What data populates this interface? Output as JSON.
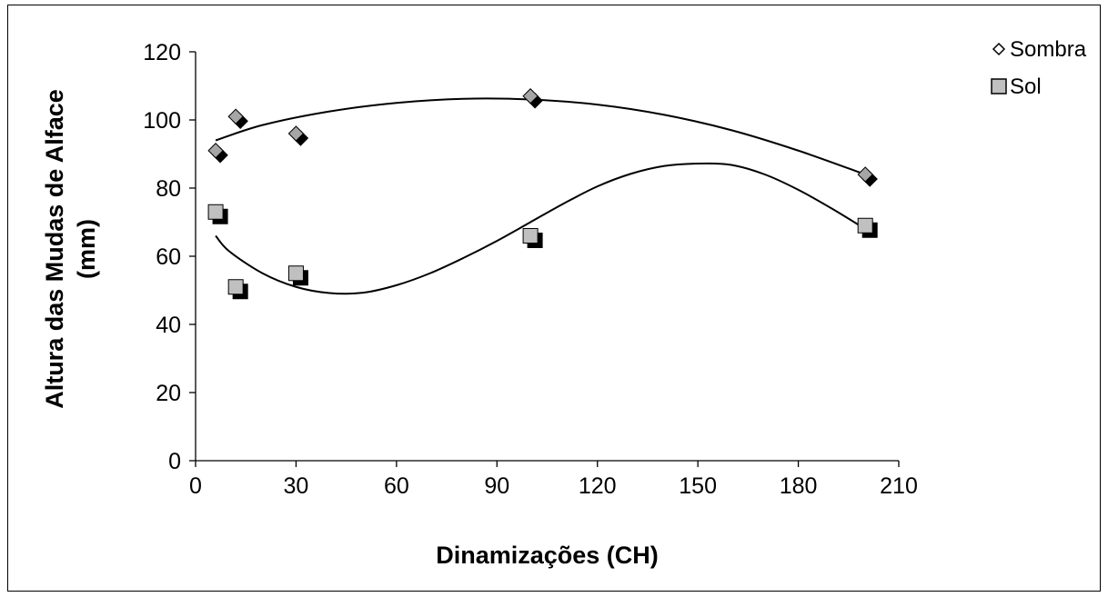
{
  "chart_data": {
    "type": "scatter",
    "xlabel": "Dinamizações (CH)",
    "ylabel_lines": [
      "Altura das Mudas de Alface",
      "(mm)"
    ],
    "xlim": [
      0,
      210
    ],
    "ylim": [
      0,
      120
    ],
    "xticks": [
      0,
      30,
      60,
      90,
      120,
      150,
      180,
      210
    ],
    "yticks": [
      0,
      20,
      40,
      60,
      80,
      100,
      120
    ],
    "grid": false,
    "legend_position": "top-right",
    "series": [
      {
        "name": "Sombra",
        "marker": "diamond",
        "color": "#a6a6a6",
        "shadow_color": "#000000",
        "x": [
          6,
          12,
          30,
          100,
          200
        ],
        "y": [
          91,
          101,
          96,
          107,
          84
        ],
        "trendline": {
          "type": "polynomial",
          "x": [
            6,
            20,
            40,
            60,
            80,
            100,
            120,
            140,
            160,
            180,
            200
          ],
          "y": [
            94,
            98.5,
            102.5,
            105,
            106.2,
            106,
            104.5,
            101.5,
            97,
            91,
            84
          ]
        }
      },
      {
        "name": "Sol",
        "marker": "square",
        "color": "#c0c0c0",
        "shadow_color": "#000000",
        "x": [
          6,
          12,
          30,
          100,
          200
        ],
        "y": [
          73,
          51,
          55,
          66,
          69
        ],
        "trendline": {
          "type": "polynomial",
          "x": [
            6,
            10,
            20,
            30,
            40,
            50,
            60,
            70,
            80,
            90,
            100,
            110,
            120,
            130,
            140,
            150,
            160,
            170,
            180,
            190,
            200
          ],
          "y": [
            66,
            61.5,
            55,
            51,
            49.2,
            49.3,
            51.5,
            55,
            59.5,
            64.5,
            70,
            75.5,
            80.5,
            84.2,
            86.5,
            87.2,
            86.8,
            84,
            79.5,
            74,
            68
          ]
        }
      }
    ]
  }
}
